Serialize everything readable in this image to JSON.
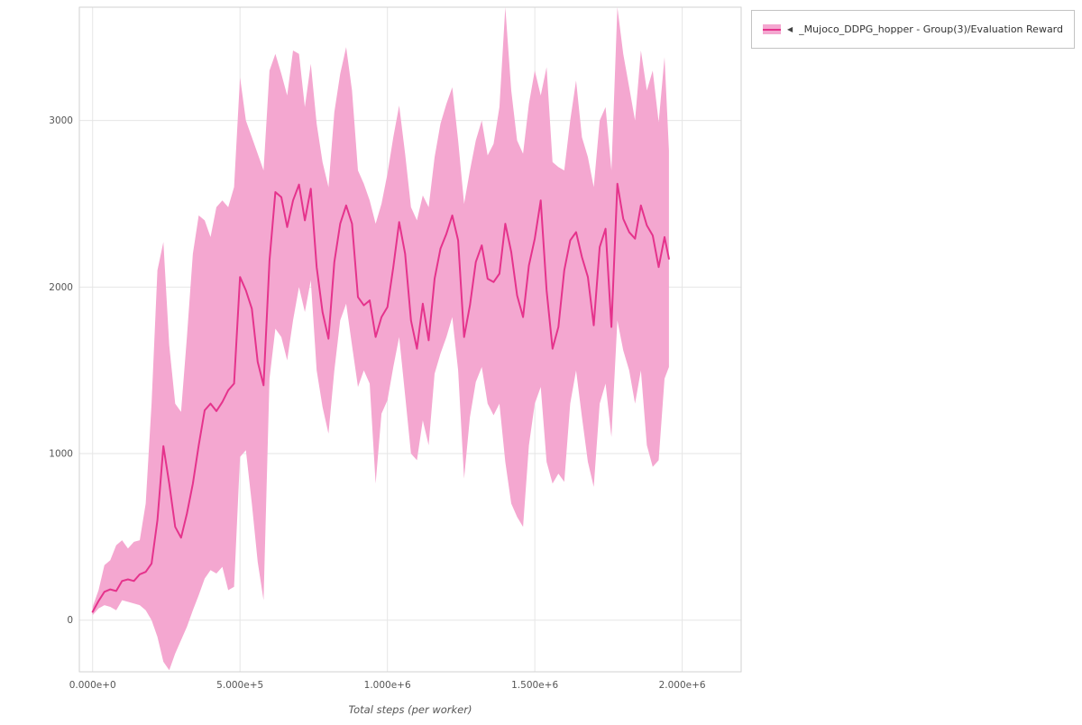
{
  "chart_data": {
    "type": "line",
    "title": "",
    "xlabel": "Total steps (per worker)",
    "ylabel": "",
    "grid": true,
    "legend_position": "top-right-outside",
    "xlim": [
      -45000,
      2200000
    ],
    "ylim": [
      -310,
      3680
    ],
    "x_ticks": [
      {
        "value": 0,
        "label": "0.000e+0"
      },
      {
        "value": 500000,
        "label": "5.000e+5"
      },
      {
        "value": 1000000,
        "label": "1.000e+6"
      },
      {
        "value": 1500000,
        "label": "1.500e+6"
      },
      {
        "value": 2000000,
        "label": "2.000e+6"
      }
    ],
    "y_ticks": [
      {
        "value": 0,
        "label": "0"
      },
      {
        "value": 1000,
        "label": "1000"
      },
      {
        "value": 2000,
        "label": "2000"
      },
      {
        "value": 3000,
        "label": "3000"
      }
    ],
    "series": [
      {
        "name": "_Mujoco_DDPG_hopper - Group(3)/Evaluation Reward",
        "marker": "◀",
        "line_color": "#e5338c",
        "band_color": "#f4a7d0",
        "x": [
          0,
          20000,
          40000,
          60000,
          80000,
          100000,
          120000,
          140000,
          160000,
          180000,
          200000,
          220000,
          240000,
          260000,
          280000,
          300000,
          320000,
          340000,
          360000,
          380000,
          400000,
          420000,
          440000,
          460000,
          480000,
          500000,
          520000,
          540000,
          560000,
          580000,
          600000,
          620000,
          640000,
          660000,
          680000,
          700000,
          720000,
          740000,
          760000,
          780000,
          800000,
          820000,
          840000,
          860000,
          880000,
          900000,
          920000,
          940000,
          960000,
          980000,
          1000000,
          1020000,
          1040000,
          1060000,
          1080000,
          1100000,
          1120000,
          1140000,
          1160000,
          1180000,
          1200000,
          1220000,
          1240000,
          1260000,
          1280000,
          1300000,
          1320000,
          1340000,
          1360000,
          1380000,
          1400000,
          1420000,
          1440000,
          1460000,
          1480000,
          1500000,
          1520000,
          1540000,
          1560000,
          1580000,
          1600000,
          1620000,
          1640000,
          1660000,
          1680000,
          1700000,
          1720000,
          1740000,
          1760000,
          1780000,
          1800000,
          1820000,
          1840000,
          1860000,
          1880000,
          1900000,
          1920000,
          1940000,
          1955000
        ],
        "mean": [
          50,
          115,
          170,
          185,
          175,
          235,
          245,
          235,
          275,
          290,
          340,
          600,
          1045,
          820,
          560,
          495,
          640,
          820,
          1050,
          1260,
          1300,
          1255,
          1310,
          1380,
          1420,
          2060,
          1980,
          1870,
          1550,
          1410,
          2160,
          2570,
          2540,
          2360,
          2520,
          2615,
          2400,
          2590,
          2120,
          1850,
          1690,
          2150,
          2380,
          2490,
          2380,
          1940,
          1890,
          1920,
          1700,
          1820,
          1880,
          2120,
          2390,
          2200,
          1800,
          1630,
          1900,
          1680,
          2050,
          2230,
          2320,
          2430,
          2280,
          1700,
          1890,
          2150,
          2250,
          2050,
          2030,
          2080,
          2380,
          2210,
          1950,
          1820,
          2130,
          2290,
          2520,
          1980,
          1630,
          1760,
          2100,
          2280,
          2330,
          2180,
          2060,
          1770,
          2240,
          2350,
          1760,
          2620,
          2410,
          2330,
          2290,
          2490,
          2370,
          2310,
          2120,
          2300,
          2170
        ],
        "band_low": [
          30,
          70,
          90,
          80,
          60,
          120,
          110,
          100,
          90,
          60,
          0,
          -100,
          -250,
          -300,
          -200,
          -120,
          -40,
          60,
          150,
          250,
          300,
          280,
          320,
          180,
          200,
          980,
          1020,
          700,
          350,
          120,
          1450,
          1750,
          1700,
          1560,
          1800,
          2000,
          1850,
          2040,
          1500,
          1280,
          1120,
          1500,
          1800,
          1900,
          1650,
          1400,
          1500,
          1420,
          820,
          1240,
          1320,
          1520,
          1700,
          1350,
          1000,
          960,
          1200,
          1050,
          1480,
          1600,
          1700,
          1820,
          1500,
          850,
          1220,
          1430,
          1520,
          1300,
          1230,
          1300,
          950,
          700,
          620,
          560,
          1050,
          1300,
          1400,
          950,
          820,
          880,
          830,
          1300,
          1500,
          1220,
          950,
          800,
          1300,
          1420,
          1100,
          1800,
          1620,
          1500,
          1300,
          1500,
          1050,
          920,
          960,
          1450,
          1520
        ],
        "band_high": [
          80,
          180,
          330,
          360,
          450,
          480,
          430,
          470,
          480,
          700,
          1300,
          2100,
          2270,
          1650,
          1300,
          1250,
          1700,
          2200,
          2430,
          2400,
          2300,
          2480,
          2520,
          2480,
          2600,
          3260,
          3000,
          2900,
          2800,
          2700,
          3300,
          3400,
          3280,
          3150,
          3420,
          3400,
          3080,
          3340,
          2980,
          2750,
          2600,
          3050,
          3280,
          3440,
          3180,
          2700,
          2620,
          2520,
          2380,
          2500,
          2680,
          2900,
          3090,
          2800,
          2480,
          2400,
          2550,
          2480,
          2780,
          2980,
          3100,
          3200,
          2880,
          2500,
          2700,
          2880,
          3000,
          2790,
          2860,
          3080,
          3700,
          3180,
          2880,
          2800,
          3100,
          3300,
          3150,
          3320,
          2750,
          2720,
          2700,
          3000,
          3240,
          2900,
          2780,
          2600,
          3000,
          3080,
          2700,
          3780,
          3400,
          3200,
          3000,
          3420,
          3180,
          3300,
          2990,
          3380,
          2820
        ]
      }
    ]
  }
}
